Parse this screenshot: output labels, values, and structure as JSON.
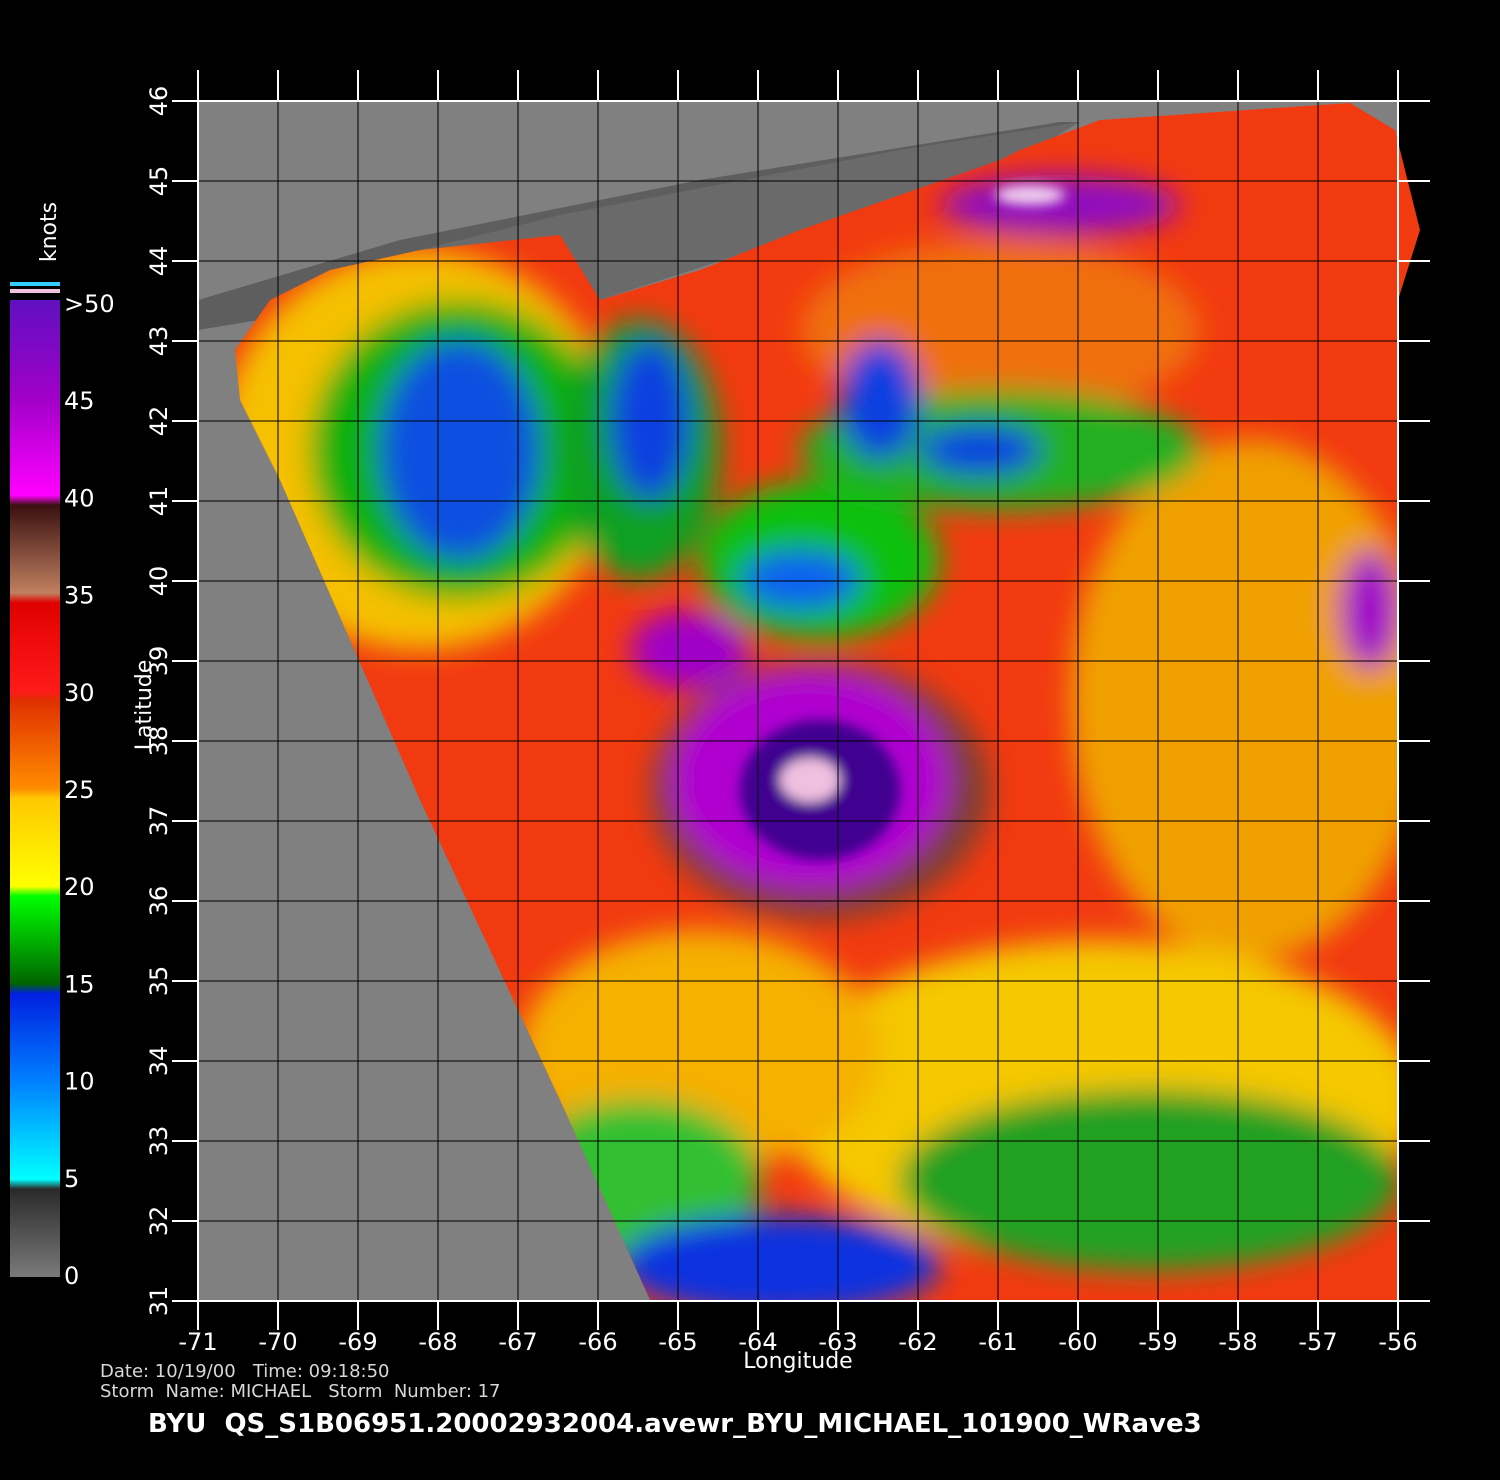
{
  "map": {
    "x_label": "Longitude",
    "y_label": "Latitude",
    "xlim": [
      -71,
      -56
    ],
    "ylim": [
      31,
      46
    ],
    "xticks": [
      -71,
      -70,
      -69,
      -68,
      -67,
      -66,
      -65,
      -64,
      -63,
      -62,
      -61,
      -60,
      -59,
      -58,
      -57,
      -56
    ],
    "yticks": [
      31,
      32,
      33,
      34,
      35,
      36,
      37,
      38,
      39,
      40,
      41,
      42,
      43,
      44,
      45,
      46
    ]
  },
  "colorbar": {
    "title": "knots",
    "lim": [
      0,
      50
    ],
    "ticks": [
      0,
      5,
      10,
      15,
      20,
      25,
      30,
      35,
      40,
      45,
      {
        "value": 50,
        "label": ">50"
      }
    ]
  },
  "footer": {
    "line1": "Date: 10/19/00   Time: 09:18:50",
    "line2": "Storm  Name: MICHAEL   Storm  Number: 17",
    "title": "BYU  QS_S1B06951.20002932004.avewr_BYU_MICHAEL_101900_WRave3"
  }
}
